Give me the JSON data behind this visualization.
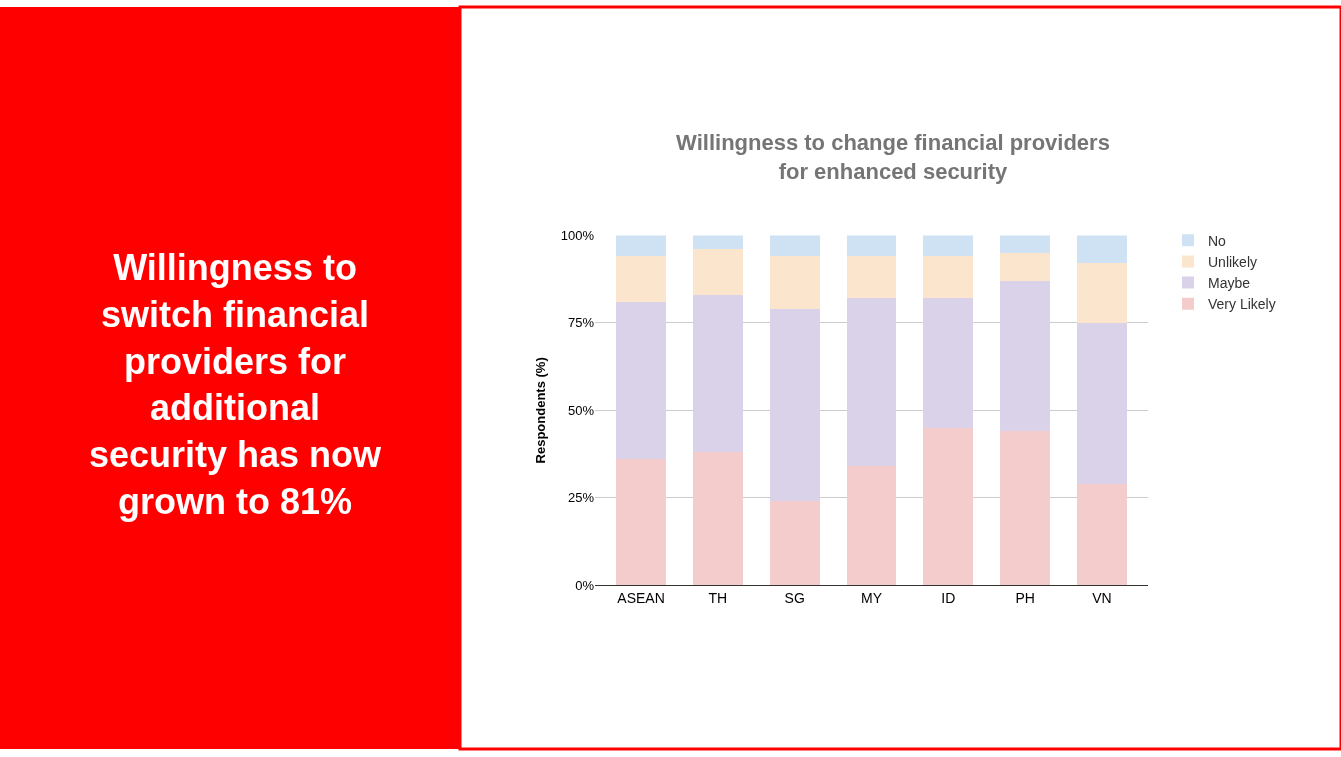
{
  "chart_data": {
    "type": "bar",
    "stacked": true,
    "title": "Willingness to change financial providers for enhanced security",
    "ylabel": "Respondents (%)",
    "annotations": [
      "Willingness to switch financial providers for additional security has now grown to 81%"
    ],
    "categories": [
      "ASEAN",
      "TH",
      "SG",
      "MY",
      "ID",
      "PH",
      "VN"
    ],
    "series": [
      {
        "name": "Very Likely",
        "color": "#f4cccc",
        "values": [
          36,
          38,
          24,
          34,
          45,
          44,
          29
        ]
      },
      {
        "name": "Maybe",
        "color": "#d9d2e9",
        "values": [
          45,
          45,
          55,
          48,
          37,
          43,
          46
        ]
      },
      {
        "name": "Unlikely",
        "color": "#fce5cd",
        "values": [
          13,
          13,
          15,
          12,
          12,
          8,
          17
        ]
      },
      {
        "name": "No",
        "color": "#cfe2f3",
        "values": [
          6,
          4,
          6,
          6,
          6,
          5,
          8
        ]
      }
    ],
    "ylim": [
      0,
      100
    ],
    "yticks": [
      {
        "value": 0,
        "label": "0%"
      },
      {
        "value": 25,
        "label": "25%"
      },
      {
        "value": 50,
        "label": "50%"
      },
      {
        "value": 75,
        "label": "75%"
      },
      {
        "value": 100,
        "label": "100%"
      }
    ],
    "grid": "y",
    "legend": "top right"
  }
}
